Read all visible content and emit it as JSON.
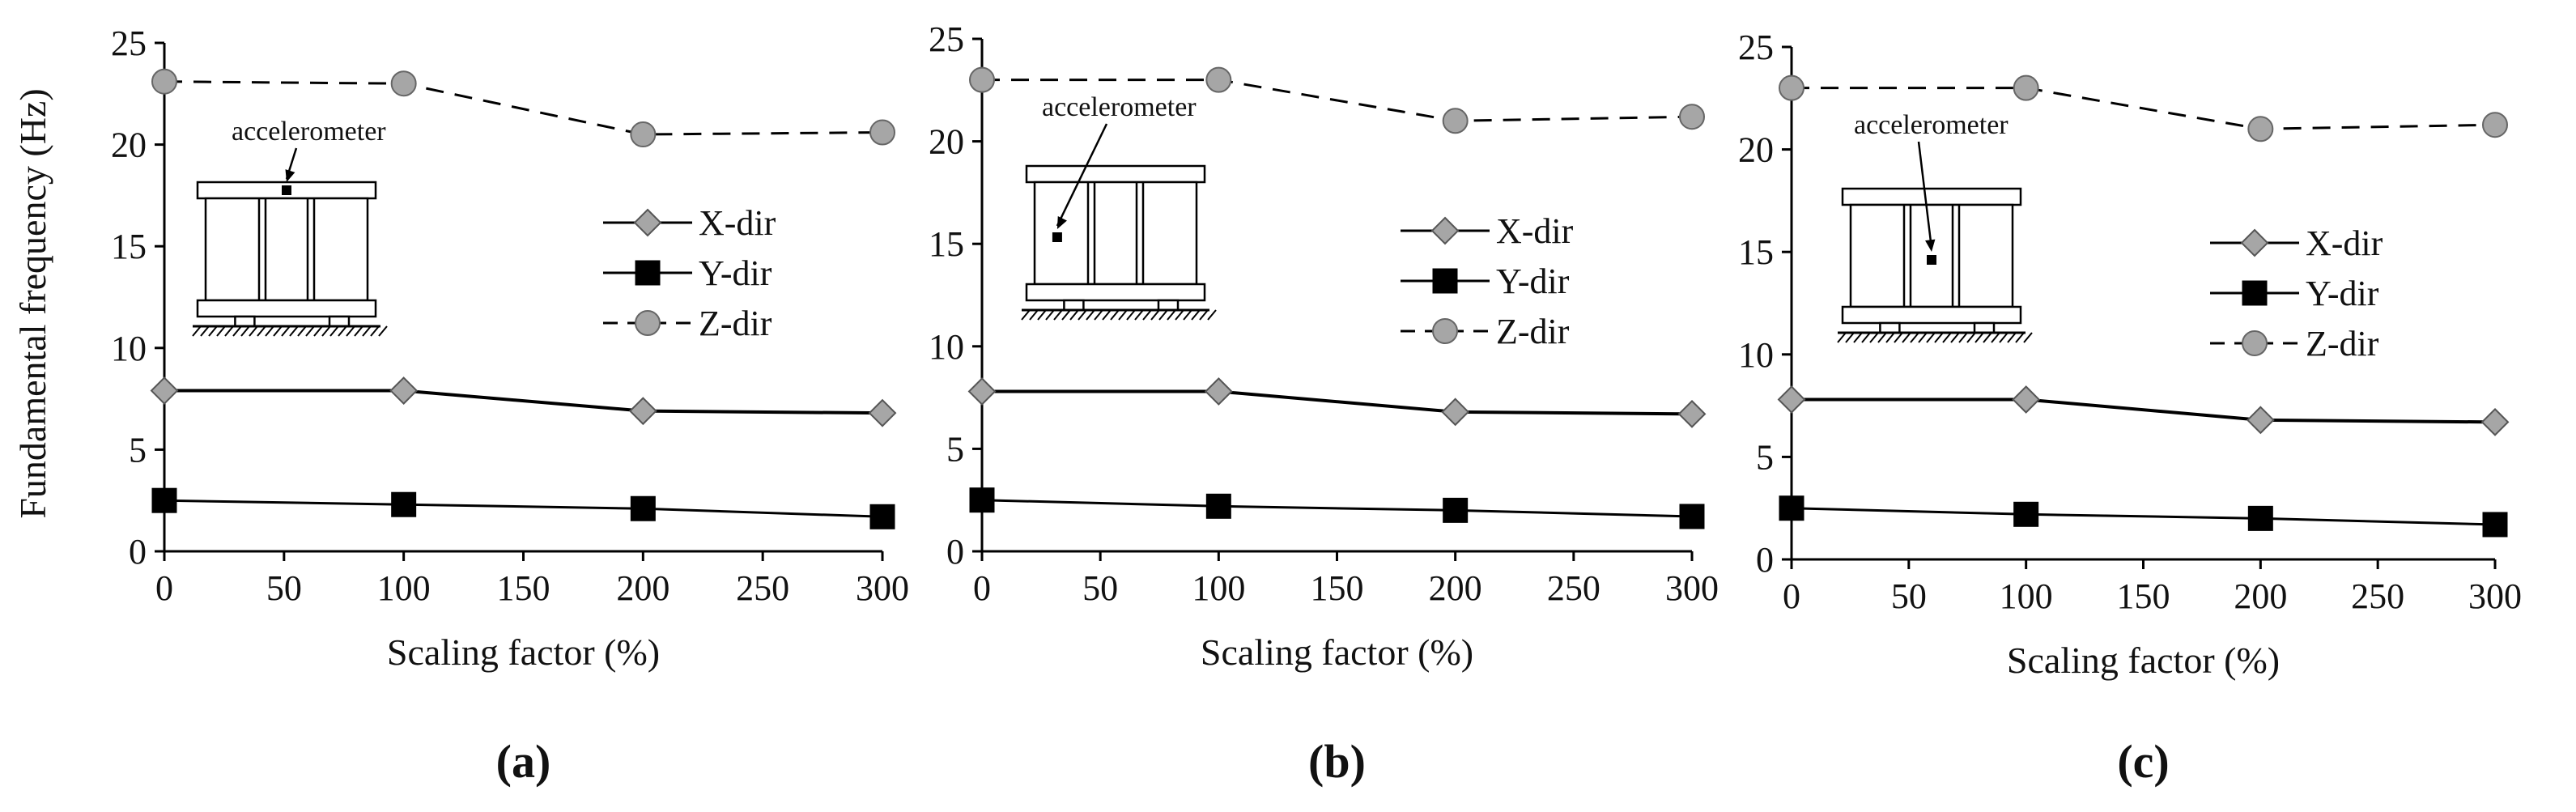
{
  "figure": {
    "ylabel": "Fundamental frequency (Hz)",
    "xlabel": "Scaling factor (%)",
    "annotation": "accelerometer",
    "colors": {
      "x_marker": "#a6a6a6",
      "y_marker": "#000000",
      "z_marker": "#a6a6a6",
      "line": "#000000",
      "axis": "#000000"
    }
  },
  "chart_data": [
    {
      "type": "line",
      "label": "(a)",
      "xlabel": "Scaling factor (%)",
      "ylabel": "Fundamental frequency (Hz)",
      "x": [
        0,
        100,
        200,
        300
      ],
      "xticks": [
        0,
        50,
        100,
        150,
        200,
        250,
        300
      ],
      "yticks": [
        0,
        5,
        10,
        15,
        20,
        25
      ],
      "xlim": [
        0,
        300
      ],
      "ylim": [
        0,
        25
      ],
      "legend_position": "center-right",
      "annotation": "accelerometer",
      "sensor_position": "top",
      "series": [
        {
          "name": "X-dir",
          "marker": "diamond",
          "values": [
            7.9,
            7.9,
            6.9,
            6.8
          ]
        },
        {
          "name": "Y-dir",
          "marker": "square",
          "values": [
            2.5,
            2.3,
            2.1,
            1.7
          ]
        },
        {
          "name": "Z-dir",
          "marker": "circle",
          "line_style": "dashed",
          "values": [
            23.1,
            23.0,
            20.5,
            20.6
          ]
        }
      ]
    },
    {
      "type": "line",
      "label": "(b)",
      "xlabel": "Scaling factor (%)",
      "ylabel": "",
      "x": [
        0,
        100,
        200,
        300
      ],
      "xticks": [
        0,
        50,
        100,
        150,
        200,
        250,
        300
      ],
      "yticks": [
        0,
        5,
        10,
        15,
        20,
        25
      ],
      "xlim": [
        0,
        300
      ],
      "ylim": [
        0,
        25
      ],
      "legend_position": "center-right",
      "annotation": "accelerometer",
      "sensor_position": "left",
      "series": [
        {
          "name": "X-dir",
          "marker": "diamond",
          "values": [
            7.8,
            7.8,
            6.8,
            6.7
          ]
        },
        {
          "name": "Y-dir",
          "marker": "square",
          "values": [
            2.5,
            2.2,
            2.0,
            1.7
          ]
        },
        {
          "name": "Z-dir",
          "marker": "circle",
          "line_style": "dashed",
          "values": [
            23.0,
            23.0,
            21.0,
            21.2
          ]
        }
      ]
    },
    {
      "type": "line",
      "label": "(c)",
      "xlabel": "Scaling factor (%)",
      "ylabel": "",
      "x": [
        0,
        100,
        200,
        300
      ],
      "xticks": [
        0,
        50,
        100,
        150,
        200,
        250,
        300
      ],
      "yticks": [
        0,
        5,
        10,
        15,
        20,
        25
      ],
      "xlim": [
        0,
        300
      ],
      "ylim": [
        0,
        25
      ],
      "legend_position": "center-right",
      "annotation": "accelerometer",
      "sensor_position": "center",
      "series": [
        {
          "name": "X-dir",
          "marker": "diamond",
          "values": [
            7.8,
            7.8,
            6.8,
            6.7
          ]
        },
        {
          "name": "Y-dir",
          "marker": "square",
          "values": [
            2.5,
            2.2,
            2.0,
            1.7
          ]
        },
        {
          "name": "Z-dir",
          "marker": "circle",
          "line_style": "dashed",
          "values": [
            23.0,
            23.0,
            21.0,
            21.2
          ]
        }
      ]
    }
  ]
}
